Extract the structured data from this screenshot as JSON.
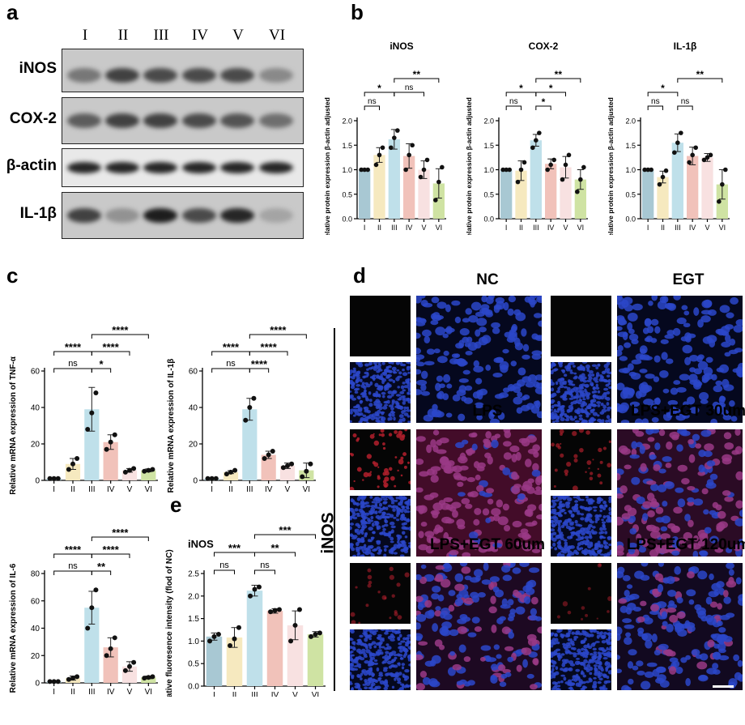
{
  "panels": {
    "a": "a",
    "b": "b",
    "c": "c",
    "d": "d",
    "e": "e"
  },
  "lanes": [
    "I",
    "II",
    "III",
    "IV",
    "V",
    "VI"
  ],
  "blot": {
    "proteins": [
      "iNOS",
      "COX-2",
      "β-actin",
      "IL-1β"
    ],
    "band_intensity": [
      [
        0.45,
        0.75,
        0.7,
        0.7,
        0.7,
        0.35
      ],
      [
        0.6,
        0.75,
        0.75,
        0.7,
        0.65,
        0.5
      ],
      [
        0.9,
        0.9,
        0.9,
        0.9,
        0.9,
        0.9
      ],
      [
        0.75,
        0.3,
        0.95,
        0.7,
        0.9,
        0.2
      ]
    ]
  },
  "sig_ns": "ns",
  "charts_b": [
    {
      "title": "iNOS",
      "ylabel": "Relative protein expression β-actin adjusted",
      "ylim": [
        0,
        2.0
      ],
      "yticks": [
        "0.0",
        "0.5",
        "1.0",
        "1.5",
        "2.0"
      ],
      "values": [
        1.0,
        1.3,
        1.62,
        1.28,
        1.0,
        0.72
      ],
      "errors": [
        0,
        0.15,
        0.2,
        0.25,
        0.18,
        0.3
      ],
      "points": [
        [
          1,
          1,
          1
        ],
        [
          1.1,
          1.3,
          1.45
        ],
        [
          1.45,
          1.65,
          1.8
        ],
        [
          1.0,
          1.3,
          1.5
        ],
        [
          0.85,
          1.0,
          1.2
        ],
        [
          0.38,
          0.75,
          1.05
        ]
      ],
      "brackets": [
        {
          "a": 0,
          "b": 1,
          "label": "ns",
          "level": 0
        },
        {
          "a": 0,
          "b": 2,
          "label": "*",
          "level": 1
        },
        {
          "a": 2,
          "b": 4,
          "label": "ns",
          "level": 1
        },
        {
          "a": 2,
          "b": 5,
          "label": "**",
          "level": 2
        }
      ]
    },
    {
      "title": "COX-2",
      "ylabel": "Relative protein expression β-actin adjusted",
      "ylim": [
        0,
        2.0
      ],
      "yticks": [
        "0.0",
        "0.5",
        "1.0",
        "1.5",
        "2.0"
      ],
      "values": [
        1.0,
        0.98,
        1.6,
        1.12,
        1.05,
        0.8
      ],
      "errors": [
        0,
        0.2,
        0.12,
        0.1,
        0.22,
        0.2
      ],
      "points": [
        [
          1,
          1,
          1
        ],
        [
          0.75,
          1.0,
          1.15
        ],
        [
          1.45,
          1.6,
          1.75
        ],
        [
          1.0,
          1.1,
          1.2
        ],
        [
          0.8,
          1.1,
          1.3
        ],
        [
          0.55,
          0.8,
          1.05
        ]
      ],
      "brackets": [
        {
          "a": 0,
          "b": 1,
          "label": "ns",
          "level": 0
        },
        {
          "a": 2,
          "b": 3,
          "label": "*",
          "level": 0
        },
        {
          "a": 0,
          "b": 2,
          "label": "*",
          "level": 1
        },
        {
          "a": 2,
          "b": 4,
          "label": "*",
          "level": 1
        },
        {
          "a": 2,
          "b": 5,
          "label": "**",
          "level": 2
        }
      ]
    },
    {
      "title": "IL-1β",
      "ylabel": "Relative protein expression β-actin adjusted",
      "ylim": [
        0,
        2.0
      ],
      "yticks": [
        "0.0",
        "0.5",
        "1.0",
        "1.5",
        "2.0"
      ],
      "values": [
        1.0,
        0.85,
        1.55,
        1.28,
        1.25,
        0.7
      ],
      "errors": [
        0,
        0.12,
        0.18,
        0.18,
        0.08,
        0.3
      ],
      "points": [
        [
          1,
          1,
          1
        ],
        [
          0.7,
          0.85,
          0.98
        ],
        [
          1.35,
          1.55,
          1.75
        ],
        [
          1.15,
          1.3,
          1.45
        ],
        [
          1.2,
          1.25,
          1.3
        ],
        [
          0.35,
          0.7,
          1.0
        ]
      ],
      "brackets": [
        {
          "a": 0,
          "b": 1,
          "label": "ns",
          "level": 0
        },
        {
          "a": 2,
          "b": 3,
          "label": "ns",
          "level": 0
        },
        {
          "a": 0,
          "b": 2,
          "label": "*",
          "level": 1
        },
        {
          "a": 2,
          "b": 5,
          "label": "**",
          "level": 2
        }
      ]
    }
  ],
  "charts_c": [
    {
      "ylabel": "Relative mRNA expression of TNF-α",
      "ylim": [
        0,
        60
      ],
      "yticks": [
        "0",
        "20",
        "40",
        "60"
      ],
      "values": [
        1,
        9,
        39,
        21,
        5.5,
        5.5
      ],
      "errors": [
        0.5,
        3,
        12,
        4,
        1,
        0.8
      ],
      "points": [
        [
          1,
          1,
          1
        ],
        [
          6,
          9,
          12
        ],
        [
          28,
          37,
          48
        ],
        [
          17,
          21,
          25
        ],
        [
          4.5,
          5.5,
          6.5
        ],
        [
          5,
          5.5,
          6
        ]
      ],
      "brackets": [
        {
          "a": 0,
          "b": 2,
          "label": "ns",
          "level": 0
        },
        {
          "a": 2,
          "b": 3,
          "label": "*",
          "level": 0
        },
        {
          "a": 0,
          "b": 2,
          "label": "****",
          "level": 1
        },
        {
          "a": 2,
          "b": 4,
          "label": "****",
          "level": 1
        },
        {
          "a": 2,
          "b": 5,
          "label": "****",
          "level": 2
        }
      ]
    },
    {
      "ylabel": "Relative mRNA expression of IL-1β",
      "ylim": [
        0,
        60
      ],
      "yticks": [
        "0",
        "20",
        "40",
        "60"
      ],
      "values": [
        1,
        4.5,
        39,
        14,
        8,
        5.5
      ],
      "errors": [
        0.4,
        0.8,
        6,
        2,
        1.5,
        4
      ],
      "points": [
        [
          1,
          1,
          1
        ],
        [
          3.5,
          4.5,
          5.5
        ],
        [
          33,
          40,
          45
        ],
        [
          12,
          14,
          16
        ],
        [
          7,
          8,
          9
        ],
        [
          2,
          5,
          9
        ]
      ],
      "brackets": [
        {
          "a": 0,
          "b": 2,
          "label": "ns",
          "level": 0
        },
        {
          "a": 2,
          "b": 3,
          "label": "****",
          "level": 0
        },
        {
          "a": 0,
          "b": 2,
          "label": "****",
          "level": 1
        },
        {
          "a": 2,
          "b": 4,
          "label": "****",
          "level": 1
        },
        {
          "a": 2,
          "b": 5,
          "label": "****",
          "level": 2
        }
      ]
    },
    {
      "ylabel": "Relative mRNA expression of IL-6",
      "ylim": [
        0,
        80
      ],
      "yticks": [
        "0",
        "20",
        "40",
        "60",
        "80"
      ],
      "values": [
        1,
        3.5,
        55,
        26,
        12,
        4
      ],
      "errors": [
        0.4,
        1.5,
        12,
        7,
        3.5,
        1
      ],
      "points": [
        [
          1,
          1,
          1
        ],
        [
          2.5,
          3.5,
          4.5
        ],
        [
          40,
          55,
          68
        ],
        [
          20,
          25,
          33
        ],
        [
          9,
          12,
          15
        ],
        [
          3.5,
          4,
          4.5
        ]
      ],
      "brackets": [
        {
          "a": 0,
          "b": 2,
          "label": "ns",
          "level": 0
        },
        {
          "a": 2,
          "b": 3,
          "label": "**",
          "level": 0
        },
        {
          "a": 0,
          "b": 2,
          "label": "****",
          "level": 1
        },
        {
          "a": 2,
          "b": 4,
          "label": "****",
          "level": 1
        },
        {
          "a": 2,
          "b": 5,
          "label": "****",
          "level": 2
        }
      ]
    }
  ],
  "chart_e": {
    "title": "iNOS",
    "ylabel": "Relative fluoresence intensity (flod of NC)",
    "ylim": [
      0,
      2.5
    ],
    "yticks": [
      "0.0",
      "0.5",
      "1.0",
      "1.5",
      "2.0",
      "2.5"
    ],
    "values": [
      1.1,
      1.08,
      2.12,
      1.67,
      1.35,
      1.15
    ],
    "errors": [
      0.08,
      0.22,
      0.12,
      0.05,
      0.32,
      0.06
    ],
    "points": [
      [
        1,
        1.1,
        1.15
      ],
      [
        0.9,
        1.05,
        1.3
      ],
      [
        2.0,
        2.15,
        2.2
      ],
      [
        1.65,
        1.68,
        1.7
      ],
      [
        1.0,
        1.35,
        1.7
      ],
      [
        1.1,
        1.15,
        1.18
      ]
    ],
    "brackets": [
      {
        "a": 0,
        "b": 1,
        "label": "ns",
        "level": 0
      },
      {
        "a": 2,
        "b": 3,
        "label": "ns",
        "level": 0
      },
      {
        "a": 0,
        "b": 2,
        "label": "***",
        "level": 1
      },
      {
        "a": 2,
        "b": 4,
        "label": "**",
        "level": 1
      },
      {
        "a": 2,
        "b": 5,
        "label": "***",
        "level": 2
      }
    ]
  },
  "bar_colors": [
    "#a8c8d3",
    "#f6e9bf",
    "#bfe0ea",
    "#f1c2ba",
    "#f8e1e1",
    "#cfe3a3"
  ],
  "fluorescence": {
    "side_label": "iNOS",
    "titles": [
      "NC",
      "EGT",
      "LPS",
      "LPS+EGT 30um",
      "LPS+EGT 60um",
      "LPS+EGT 120um"
    ],
    "red_level": [
      0,
      0,
      0.9,
      0.55,
      0.35,
      0.2
    ]
  }
}
